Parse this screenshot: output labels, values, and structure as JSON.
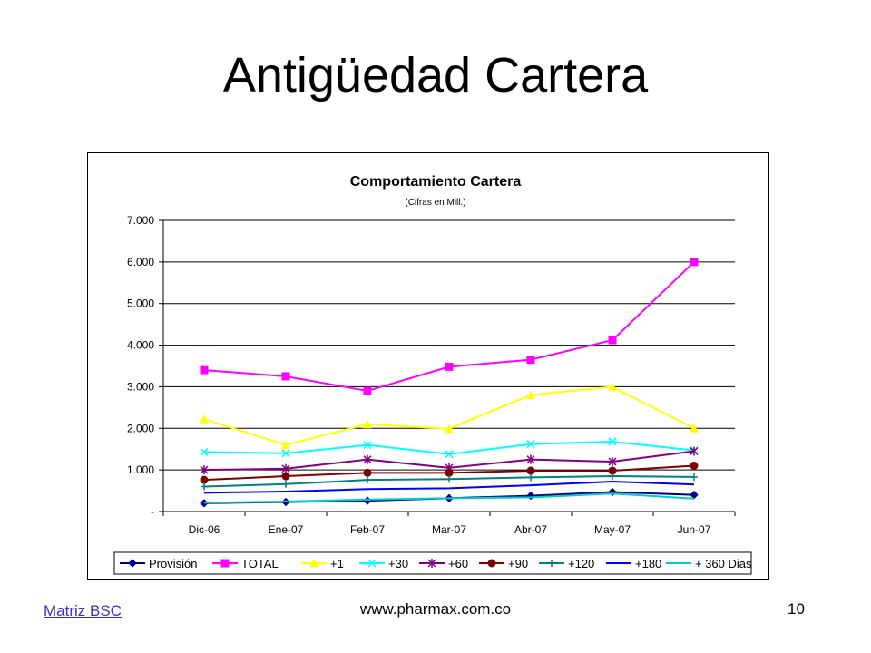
{
  "slide": {
    "title": "Antigüedad Cartera",
    "footer_link": "Matriz BSC",
    "footer_url": "www.pharmax.com.co",
    "page_number": "10"
  },
  "chart_data": {
    "type": "line",
    "title": "Comportamiento Cartera",
    "subtitle": "(Cifras en Mill.)",
    "xlabel": "",
    "ylabel": "",
    "categories": [
      "Dic-06",
      "Ene-07",
      "Feb-07",
      "Mar-07",
      "Abr-07",
      "May-07",
      "Jun-07"
    ],
    "ylim": [
      0,
      7000
    ],
    "yticks": [
      {
        "value": 0,
        "label": "-"
      },
      {
        "value": 1000,
        "label": "1.000"
      },
      {
        "value": 2000,
        "label": "2.000"
      },
      {
        "value": 3000,
        "label": "3.000"
      },
      {
        "value": 4000,
        "label": "4.000"
      },
      {
        "value": 5000,
        "label": "5.000"
      },
      {
        "value": 6000,
        "label": "6.000"
      },
      {
        "value": 7000,
        "label": "7.000"
      }
    ],
    "grid": true,
    "legend_position": "bottom",
    "series": [
      {
        "name": "Provisión",
        "color": "#000080",
        "marker": "diamond",
        "values": [
          200,
          230,
          260,
          320,
          380,
          470,
          400
        ]
      },
      {
        "name": "TOTAL",
        "color": "#ff00ff",
        "marker": "square",
        "values": [
          3400,
          3250,
          2900,
          3480,
          3650,
          4120,
          6000
        ]
      },
      {
        "name": "+1",
        "color": "#ffff00",
        "marker": "triangle",
        "values": [
          2220,
          1600,
          2100,
          1990,
          2800,
          3000,
          2000
        ]
      },
      {
        "name": "+30",
        "color": "#00ffff",
        "marker": "x",
        "values": [
          1430,
          1400,
          1600,
          1380,
          1620,
          1680,
          1470
        ]
      },
      {
        "name": "+60",
        "color": "#800080",
        "marker": "star",
        "values": [
          1000,
          1030,
          1250,
          1050,
          1250,
          1200,
          1450
        ]
      },
      {
        "name": "+90",
        "color": "#800000",
        "marker": "circle",
        "values": [
          760,
          850,
          930,
          930,
          980,
          980,
          1100
        ]
      },
      {
        "name": "+120",
        "color": "#008080",
        "marker": "plus",
        "values": [
          600,
          660,
          760,
          780,
          820,
          850,
          830
        ]
      },
      {
        "name": "+180",
        "color": "#0000ff",
        "marker": "none",
        "values": [
          450,
          480,
          540,
          560,
          630,
          720,
          650
        ]
      },
      {
        "name": "+ 360 Dias",
        "color": "#00cccc",
        "marker": "none",
        "values": [
          210,
          240,
          290,
          320,
          340,
          430,
          310
        ]
      }
    ]
  }
}
